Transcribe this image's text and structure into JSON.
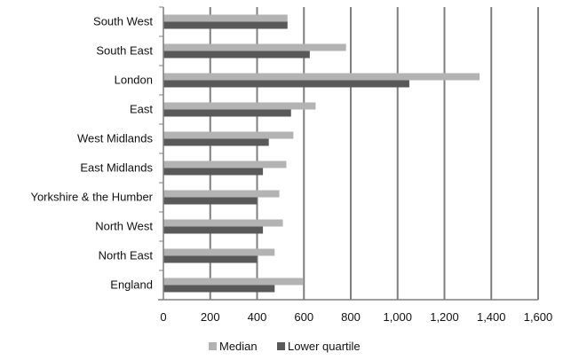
{
  "chart_data": {
    "type": "bar",
    "orientation": "horizontal",
    "categories": [
      "South West",
      "South East",
      "London",
      "East",
      "West Midlands",
      "East Midlands",
      "Yorkshire & the Humber",
      "North West",
      "North East",
      "England"
    ],
    "series": [
      {
        "name": "Median",
        "color": "#b3b3b3",
        "values": [
          530,
          780,
          1350,
          650,
          555,
          525,
          495,
          510,
          475,
          595
        ]
      },
      {
        "name": "Lower quartile",
        "color": "#595959",
        "values": [
          530,
          625,
          1050,
          545,
          450,
          425,
          400,
          425,
          400,
          475
        ]
      }
    ],
    "xlim": [
      0,
      1600
    ],
    "xticks": [
      0,
      200,
      400,
      600,
      800,
      1000,
      1200,
      1400,
      1600
    ],
    "xtick_labels": [
      "0",
      "200",
      "400",
      "600",
      "800",
      "1,000",
      "1,200",
      "1,400",
      "1,600"
    ],
    "grid": true,
    "legend_position": "bottom"
  }
}
